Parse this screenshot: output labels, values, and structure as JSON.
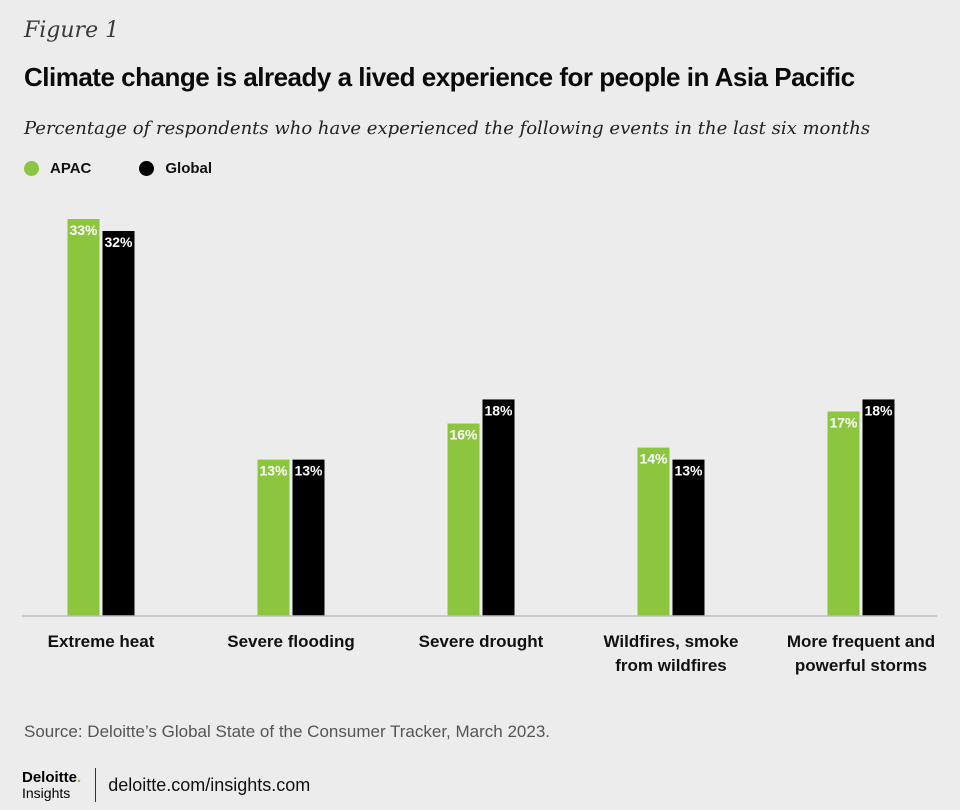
{
  "header": {
    "figure_label": "Figure 1",
    "title": "Climate change is already a lived experience for people in Asia Pacific",
    "subtitle": "Percentage of respondents who have experienced the following events in the last six months"
  },
  "legend": {
    "placement": "top-left",
    "items": [
      {
        "label": "APAC",
        "color": "#8cc63f"
      },
      {
        "label": "Global",
        "color": "#000000"
      }
    ]
  },
  "chart_data": {
    "type": "bar",
    "categories": [
      [
        "Extreme heat"
      ],
      [
        "Severe flooding"
      ],
      [
        "Severe drought"
      ],
      [
        "Wildfires, smoke",
        "from wildfires"
      ],
      [
        "More frequent and",
        "powerful storms"
      ]
    ],
    "series": [
      {
        "name": "APAC",
        "color": "#8cc63f",
        "values": [
          33,
          13,
          16,
          14,
          17
        ],
        "labels": [
          "33%",
          "13%",
          "16%",
          "14%",
          "17%"
        ]
      },
      {
        "name": "Global",
        "color": "#000000",
        "values": [
          32,
          13,
          18,
          13,
          18
        ],
        "labels": [
          "32%",
          "13%",
          "18%",
          "13%",
          "18%"
        ]
      }
    ],
    "ylim": [
      0,
      33
    ],
    "grid": false
  },
  "source": "Source: Deloitte’s Global State of the Consumer Tracker, March 2023.",
  "footer": {
    "brand": "Deloitte",
    "brand_dot": ".",
    "brand_sub": "Insights",
    "url": "deloitte.com/insights.com"
  }
}
